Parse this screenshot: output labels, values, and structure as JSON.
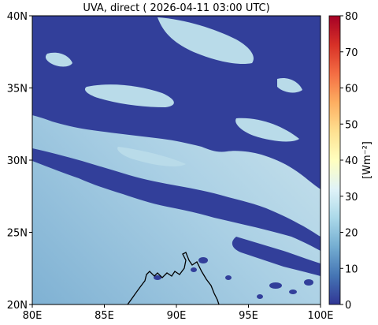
{
  "title": "UVA, direct ( 2026-04-11 03:00 UTC)",
  "map": {
    "lon_range": [
      80,
      100
    ],
    "lat_range": [
      20,
      40
    ],
    "x_ticks": [
      {
        "value": 80,
        "label": "80E"
      },
      {
        "value": 85,
        "label": "85E"
      },
      {
        "value": 90,
        "label": "90E"
      },
      {
        "value": 95,
        "label": "95E"
      },
      {
        "value": 100,
        "label": "100E"
      }
    ],
    "y_ticks": [
      {
        "value": 20,
        "label": "20N"
      },
      {
        "value": 25,
        "label": "25N"
      },
      {
        "value": 30,
        "label": "30N"
      },
      {
        "value": 35,
        "label": "35N"
      },
      {
        "value": 40,
        "label": "40N"
      }
    ],
    "colors": {
      "cloud": "#323f9a",
      "clear_low": "#8bbad8",
      "clear_high": "#d2e8ef",
      "coastline": "#000000"
    }
  },
  "colorbar": {
    "label": "[Wm⁻²]",
    "range": [
      0,
      80
    ],
    "ticks": [
      "0",
      "10",
      "20",
      "30",
      "40",
      "50",
      "60",
      "70",
      "80"
    ],
    "colormap": "RdYlBu_r"
  }
}
